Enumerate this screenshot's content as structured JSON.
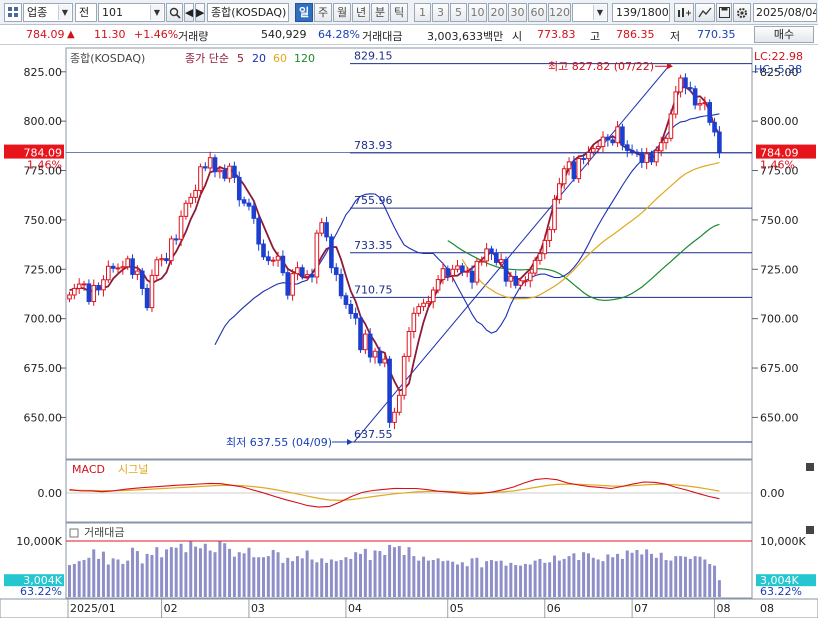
{
  "toolbar": {
    "market_select": "업종",
    "type_select": "전",
    "code_input": "101",
    "index_name": "종합(KOSDAQ)",
    "periods": [
      "일",
      "주",
      "월",
      "년",
      "분",
      "틱",
      "1",
      "3",
      "5",
      "10",
      "20",
      "30",
      "60",
      "120"
    ],
    "active_period": "일",
    "count": "139/1800",
    "date": "2025/08/04",
    "trade_button": "매수"
  },
  "quote": {
    "price": "784.09",
    "arrow": "▲",
    "change": "11.30",
    "change_pct": "+1.46%",
    "volume_label": "거래량",
    "volume": "540,929",
    "volume_ratio": "64.28%",
    "amount_label": "거래대금",
    "amount": "3,003,633백만",
    "open_label": "시",
    "open": "773.83",
    "high_label": "고",
    "high": "786.35",
    "low_label": "저",
    "low": "770.35"
  },
  "chart_data": {
    "type": "candlestick",
    "title": "종합(KOSDAQ)",
    "legend": {
      "price_series": "종가 단순",
      "ma_periods": [
        "5",
        "20",
        "60",
        "120"
      ],
      "ma_colors": [
        "#8b1b3a",
        "#1c2fb5",
        "#e0a81c",
        "#1a8a2e"
      ]
    },
    "x_ticks": [
      "2025/01",
      "02",
      "03",
      "04",
      "05",
      "06",
      "07",
      "08"
    ],
    "x_tick_index": [
      0,
      19,
      37,
      57,
      78,
      98,
      116,
      133
    ],
    "y_ticks": [
      "825.00",
      "800.00",
      "775.00",
      "750.00",
      "725.00",
      "700.00",
      "675.00",
      "650.00"
    ],
    "y_tick_values": [
      825,
      800,
      775,
      750,
      725,
      700,
      675,
      650
    ],
    "ylim": [
      633,
      834
    ],
    "closes": [
      712.0,
      715.3,
      717.5,
      717.6,
      708.7,
      716.8,
      714.6,
      719.7,
      726.5,
      725.5,
      725.7,
      726.3,
      730.3,
      722.4,
      724.1,
      715.3,
      705.6,
      721.9,
      729.8,
      730.4,
      729.4,
      740.4,
      740.2,
      751.8,
      758.4,
      761.4,
      764.9,
      776.9,
      776.3,
      781.5,
      774.4,
      775.1,
      771.1,
      777.2,
      771.5,
      760.2,
      758.5,
      757.0,
      750.8,
      737.8,
      731.3,
      729.4,
      729.6,
      731.6,
      723.3,
      711.9,
      722.8,
      725.8,
      721.4,
      722.3,
      721.1,
      743.3,
      748.6,
      741.4,
      725.8,
      722.4,
      711.6,
      707.2,
      702.6,
      700.3,
      684.3,
      692.2,
      680.6,
      683.5,
      677.6,
      679.5,
      647.5,
      652.6,
      661.2,
      680.9,
      693.5,
      702.7,
      706.1,
      707.8,
      708.6,
      714.5,
      719.8,
      725.3,
      721.9,
      725.0,
      726.7,
      723.8,
      724.0,
      718.5,
      729.0,
      729.2,
      735.3,
      733.1,
      728.5,
      729.9,
      719.0,
      721.4,
      716.9,
      719.2,
      719.2,
      723.1,
      729.5,
      732.9,
      739.6,
      745.1,
      760.4,
      768.3,
      775.9,
      779.4,
      770.9,
      781.1,
      781.0,
      784.3,
      786.1,
      787.2,
      791.9,
      790.5,
      789.1,
      797.1,
      788.0,
      785.2,
      784.3,
      784.0,
      779.1,
      783.5,
      779.4,
      785.0,
      789.1,
      791.3,
      803.6,
      814.8,
      821.9,
      817.0,
      816.4,
      808.2,
      808.9,
      809.4,
      799.4,
      794.5,
      784.1
    ],
    "ma5": [
      714.5,
      714.9,
      715.6,
      715.3,
      713.9,
      714.2,
      715.3,
      715.5,
      716.4,
      720.3,
      722.7,
      724.8,
      726.4,
      726.0,
      725.8,
      723.7,
      719.6,
      717.9,
      719.3,
      720.4,
      723.5,
      730.3,
      734.0,
      738.9,
      744.0,
      750.4,
      755.3,
      762.6,
      767.6,
      774.2,
      774.7,
      776.8,
      775.7,
      775.9,
      773.9,
      771.0,
      767.7,
      763.7,
      759.6,
      752.9,
      747.1,
      741.3,
      735.7,
      732.0,
      729.1,
      725.2,
      723.8,
      723.1,
      721.0,
      720.8,
      722.7,
      726.7,
      731.4,
      735.3,
      736.2,
      736.3,
      729.9,
      721.7,
      713.9,
      708.8,
      701.2,
      697.3,
      692.0,
      688.2,
      683.6,
      682.7,
      673.7,
      668.3,
      663.7,
      664.3,
      667.2,
      678.2,
      688.9,
      698.2,
      705.7,
      709.9,
      715.4,
      721.1,
      721.1,
      721.7,
      721.8,
      723.7,
      723.9,
      725.6,
      727.7,
      729.9,
      732.0,
      733.8,
      731.5,
      726.9,
      725.2,
      721.7,
      719.9,
      720.2,
      722.8,
      725.1,
      729.4,
      733.5,
      740.7,
      750.1,
      758.9,
      764.4,
      770.4,
      776.7,
      780.1,
      782.1,
      782.6,
      784.5,
      788.1,
      789.9,
      791.2,
      790.9,
      792.4,
      790.8,
      787.6,
      786.2,
      785.1,
      783.5,
      782.6,
      781.8,
      781.3,
      782.9,
      789.1,
      796.1,
      804.0,
      811.6,
      816.8,
      817.3,
      815.4,
      812.3,
      812.6,
      810.1,
      805.2,
      797.2,
      793.6
    ],
    "ma20": [
      686.8,
      691.5,
      696.1,
      699.2,
      701.3,
      703.8,
      706.0,
      708.1,
      710.3,
      712.0,
      713.8,
      715.1,
      716.5,
      717.6,
      718.2,
      718.0,
      717.4,
      717.6,
      718.7,
      719.4,
      722.6,
      725.6,
      729.5,
      733.5,
      738.3,
      742.9,
      747.5,
      752.6,
      755.7,
      759.6,
      761.9,
      762.9,
      763.2,
      763.1,
      761.3,
      756.5,
      751.2,
      746.2,
      741.5,
      737.4,
      735.8,
      734.5,
      733.4,
      733.0,
      733.1,
      733.0,
      730.4,
      728.0,
      724.8,
      720.9,
      716.1,
      711.7,
      707.0,
      702.3,
      698.5,
      697.1,
      694.2,
      692.7,
      693.6,
      696.9,
      701.1,
      707.3,
      712.1,
      716.2,
      719.2,
      720.6,
      721.8,
      722.5,
      722.6,
      721.7,
      720.9,
      720.8,
      721.7,
      723.3,
      725.9,
      729.1,
      733.1,
      737.7,
      742.7,
      747.1,
      751.4,
      755.4,
      759.4,
      763.3,
      767.4,
      771.2,
      774.7,
      777.6,
      780.2,
      782.6,
      784.1,
      786.0,
      789.0,
      792.5,
      795.9,
      798.1,
      799.6,
      800.0,
      801.1,
      801.5,
      802.2,
      802.6,
      802.8,
      803.2,
      803.7
    ],
    "ma60": [
      730.0,
      726.0,
      723.8,
      721.0,
      718.3,
      716.2,
      714.6,
      713.0,
      712.0,
      711.0,
      710.5,
      710.0,
      710.2,
      710.1,
      710.5,
      711.0,
      712.1,
      713.5,
      714.9,
      716.4,
      718.1,
      720.1,
      722.3,
      724.7,
      727.4,
      730.0,
      732.4,
      734.6,
      736.8,
      738.9,
      740.7,
      742.4,
      744.2,
      746.1,
      748.0,
      749.7,
      751.6,
      753.6,
      755.8,
      758.2,
      760.6,
      762.8,
      765.0,
      767.2,
      769.4,
      771.5,
      773.3,
      774.6,
      775.8,
      776.6,
      777.3,
      777.9,
      778.4,
      779.0
    ],
    "ma120": [
      739.5,
      738.0,
      736.2,
      734.6,
      733.2,
      731.9,
      730.6,
      729.4,
      728.2,
      727.2,
      726.3,
      725.6,
      725.2,
      725.0,
      724.8,
      724.7,
      724.8,
      725.0,
      725.2,
      725.3,
      725.1,
      724.7,
      724.0,
      722.8,
      721.2,
      719.3,
      717.2,
      715.2,
      713.2,
      711.6,
      710.4,
      709.6,
      709.3,
      709.3,
      709.6,
      710.0,
      710.6,
      711.6,
      712.8,
      714.3,
      716.0,
      718.0,
      720.2,
      722.4,
      724.7,
      726.8,
      729.0,
      731.2,
      733.4,
      735.6,
      737.6,
      739.5,
      741.4,
      743.4,
      745.4,
      746.9,
      747.8
    ],
    "fib_levels": [
      829.15,
      783.93,
      755.96,
      733.35,
      710.75,
      637.55
    ],
    "fib_labels": [
      "829.15",
      "783.93",
      "755.96",
      "733.35",
      "710.75",
      "637.55"
    ],
    "annotations": {
      "max_label": "최고 827.82 (07/22)",
      "min_label": "최저 637.55 (04/09)",
      "lc": "LC:22.98",
      "hc": "HC:-5.28",
      "current_price": "784.09",
      "current_pct": "1.46%"
    },
    "macd": {
      "title": "MACD",
      "signal_title": "시그널",
      "zero_label": "0.00",
      "macd": [
        6.2,
        4.0,
        3.8,
        2.4,
        3.9,
        6.5,
        8.6,
        10.2,
        11.4,
        12.9,
        14.1,
        15.1,
        16.3,
        17.5,
        16.9,
        14.0,
        10.9,
        5.2,
        -0.3,
        -6.5,
        -12.4,
        -17.5,
        -22.9,
        -25.6,
        -24.4,
        -16.3,
        -6.6,
        0.9,
        4.6,
        6.6,
        8.4,
        8.1,
        8.2,
        6.2,
        3.3,
        2.0,
        -0.1,
        -1.8,
        -0.9,
        1.6,
        5.8,
        10.9,
        18.4,
        24.3,
        26.3,
        24.1,
        18.2,
        14.5,
        11.6,
        10.2,
        8.1,
        11.9,
        16.1,
        20.0,
        19.4,
        16.6,
        10.1,
        5.2,
        -0.5,
        -6.1,
        -10.3
      ],
      "signal": [
        4.8,
        4.8,
        4.6,
        4.2,
        4.1,
        4.6,
        5.4,
        6.4,
        7.4,
        8.5,
        9.6,
        10.7,
        11.8,
        13.0,
        13.8,
        13.8,
        13.2,
        11.6,
        9.2,
        6.1,
        2.4,
        -1.5,
        -5.8,
        -9.8,
        -12.7,
        -13.4,
        -12.0,
        -9.4,
        -6.6,
        -4.0,
        -1.5,
        0.4,
        2.0,
        2.8,
        2.9,
        2.7,
        2.1,
        1.3,
        0.9,
        1.0,
        2.0,
        3.8,
        6.7,
        10.2,
        13.4,
        15.6,
        16.1,
        15.8,
        14.9,
        14.0,
        12.8,
        12.6,
        13.3,
        14.6,
        15.6,
        15.8,
        14.7,
        12.8,
        10.1,
        6.9,
        3.4
      ]
    },
    "volume": {
      "title": "거래대금",
      "y_tick": "10,000K",
      "current": "3,004K",
      "current_pct": "63.22%",
      "bars": [
        5.7,
        5.9,
        6.4,
        6.6,
        7.0,
        8.5,
        6.8,
        8.1,
        5.8,
        6.9,
        6.7,
        5.9,
        6.5,
        8.8,
        8.2,
        6.0,
        7.7,
        7.5,
        8.9,
        7.1,
        8.5,
        8.9,
        8.8,
        9.5,
        8.0,
        9.9,
        9.0,
        8.7,
        9.5,
        8.3,
        8.0,
        9.9,
        9.6,
        8.6,
        7.2,
        8.0,
        7.8,
        8.8,
        7.1,
        7.1,
        7.1,
        7.3,
        8.4,
        8.0,
        6.1,
        7.0,
        6.4,
        7.3,
        6.9,
        8.3,
        6.7,
        6.2,
        6.9,
        6.1,
        6.7,
        6.4,
        6.6,
        7.1,
        6.8,
        8.0,
        7.7,
        8.6,
        6.6,
        8.3,
        8.2,
        7.5,
        9.3,
        8.9,
        9.1,
        7.5,
        8.9,
        7.3,
        6.5,
        7.2,
        6.5,
        6.6,
        6.9,
        6.4,
        6.5,
        6.3,
        5.8,
        6.2,
        5.5,
        6.9,
        7.0,
        5.3,
        6.4,
        6.6,
        6.4,
        6.5,
        5.6,
        6.1,
        5.7,
        5.6,
        5.9,
        5.8,
        6.5,
        6.8,
        6.1,
        6.2,
        7.4,
        6.5,
        6.8,
        7.3,
        7.8,
        6.6,
        8.0,
        7.8,
        7.0,
        6.7,
        6.4,
        7.6,
        7.1,
        7.7,
        6.8,
        8.3,
        7.9,
        8.4,
        7.6,
        8.5,
        7.7,
        7.0,
        7.9,
        6.6,
        6.5,
        7.3,
        7.3,
        7.2,
        6.8,
        7.3,
        7.2,
        6.7,
        5.9,
        5.6,
        3.0
      ]
    }
  }
}
